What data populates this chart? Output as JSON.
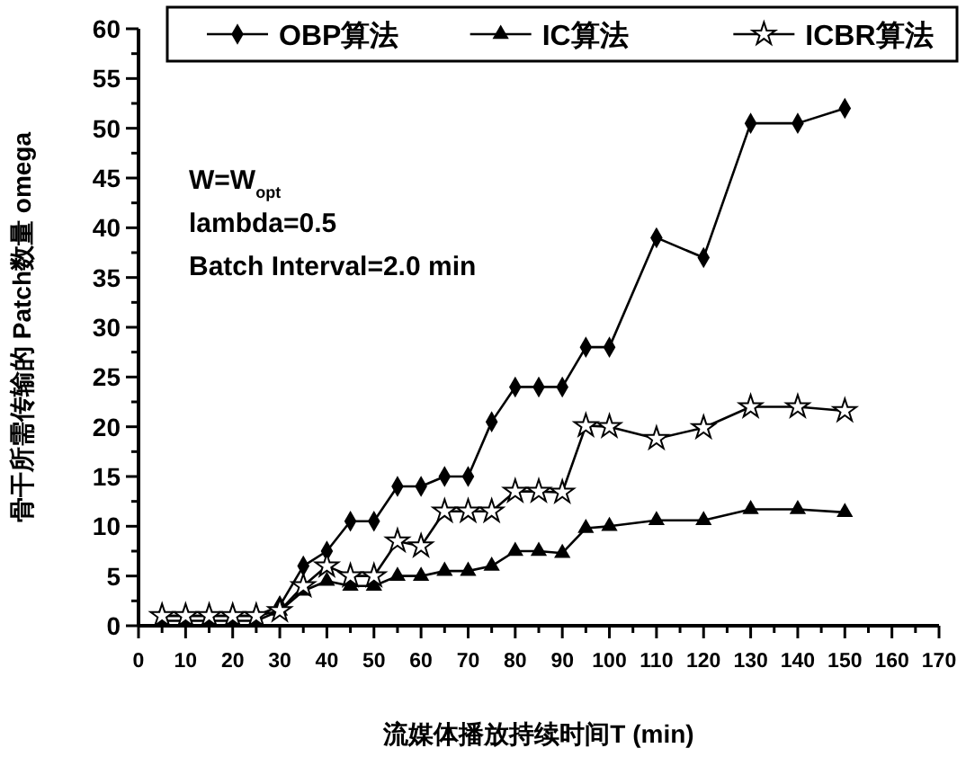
{
  "chart_data": {
    "type": "line",
    "xlabel": "流媒体播放持续时间T (min)",
    "ylabel": "骨干所需传输的 Patch数量 omega",
    "x": [
      5,
      10,
      15,
      20,
      25,
      30,
      35,
      40,
      45,
      50,
      55,
      60,
      65,
      70,
      75,
      80,
      85,
      90,
      95,
      100,
      110,
      120,
      130,
      140,
      150
    ],
    "series": [
      {
        "name": "OBP算法",
        "color": "#000000",
        "marker": "diamond",
        "values": [
          1,
          1,
          1,
          1,
          1,
          2,
          6,
          7.5,
          10.5,
          10.5,
          14,
          14,
          15,
          15,
          20.5,
          24,
          24,
          24,
          28,
          28,
          39,
          37,
          50.5,
          50.5,
          52
        ]
      },
      {
        "name": "IC算法",
        "color": "#000000",
        "marker": "triangle",
        "values": [
          0.5,
          0.5,
          0.5,
          0.5,
          0.5,
          1.5,
          3.5,
          4.5,
          4,
          4,
          5,
          5,
          5.5,
          5.5,
          6,
          7.5,
          7.5,
          7.3,
          9.8,
          10,
          10.6,
          10.6,
          11.7,
          11.7,
          11.4
        ]
      },
      {
        "name": "ICBR算法",
        "color": "#000000",
        "marker": "star",
        "values": [
          1,
          1,
          1,
          1,
          1,
          1.5,
          4,
          6,
          5,
          5,
          8.5,
          8,
          11.5,
          11.5,
          11.5,
          13.5,
          13.5,
          13.4,
          20.1,
          20,
          18.8,
          19.9,
          22,
          22,
          21.6
        ]
      }
    ],
    "xlim": [
      0,
      170
    ],
    "xticks": [
      0,
      {
        "value": 5,
        "label": null
      },
      10,
      {
        "value": 15,
        "label": null
      },
      20,
      {
        "value": 25,
        "label": null
      },
      30,
      {
        "value": 35,
        "label": null
      },
      40,
      {
        "value": 45,
        "label": null
      },
      50,
      {
        "value": 55,
        "label": null
      },
      60,
      {
        "value": 65,
        "label": null
      },
      70,
      {
        "value": 75,
        "label": null
      },
      80,
      {
        "value": 85,
        "label": null
      },
      90,
      {
        "value": 95,
        "label": null
      },
      100,
      {
        "value": 105,
        "label": null
      },
      110,
      {
        "value": 115,
        "label": null
      },
      120,
      {
        "value": 125,
        "label": null
      },
      130,
      {
        "value": 135,
        "label": null
      },
      140,
      {
        "value": 145,
        "label": null
      },
      150,
      {
        "value": 155,
        "label": null
      },
      160,
      {
        "value": 165,
        "label": null
      },
      170
    ],
    "ylim": [
      0,
      60
    ],
    "yticks": [
      0,
      {
        "value": 2.5,
        "label": null
      },
      5,
      {
        "value": 7.5,
        "label": null
      },
      10,
      {
        "value": 12.5,
        "label": null
      },
      15,
      {
        "value": 17.5,
        "label": null
      },
      20,
      {
        "value": 22.5,
        "label": null
      },
      25,
      {
        "value": 27.5,
        "label": null
      },
      30,
      {
        "value": 32.5,
        "label": null
      },
      35,
      {
        "value": 37.5,
        "label": null
      },
      40,
      {
        "value": 42.5,
        "label": null
      },
      45,
      {
        "value": 47.5,
        "label": null
      },
      50,
      {
        "value": 52.5,
        "label": null
      },
      55,
      {
        "value": 57.5,
        "label": null
      },
      60
    ],
    "annotations": [
      "W=W$_{opt}$",
      "lambda=0.5",
      "Batch Interval=2.0 min"
    ],
    "legend": "top",
    "grid": false,
    "line_style": "solid"
  }
}
